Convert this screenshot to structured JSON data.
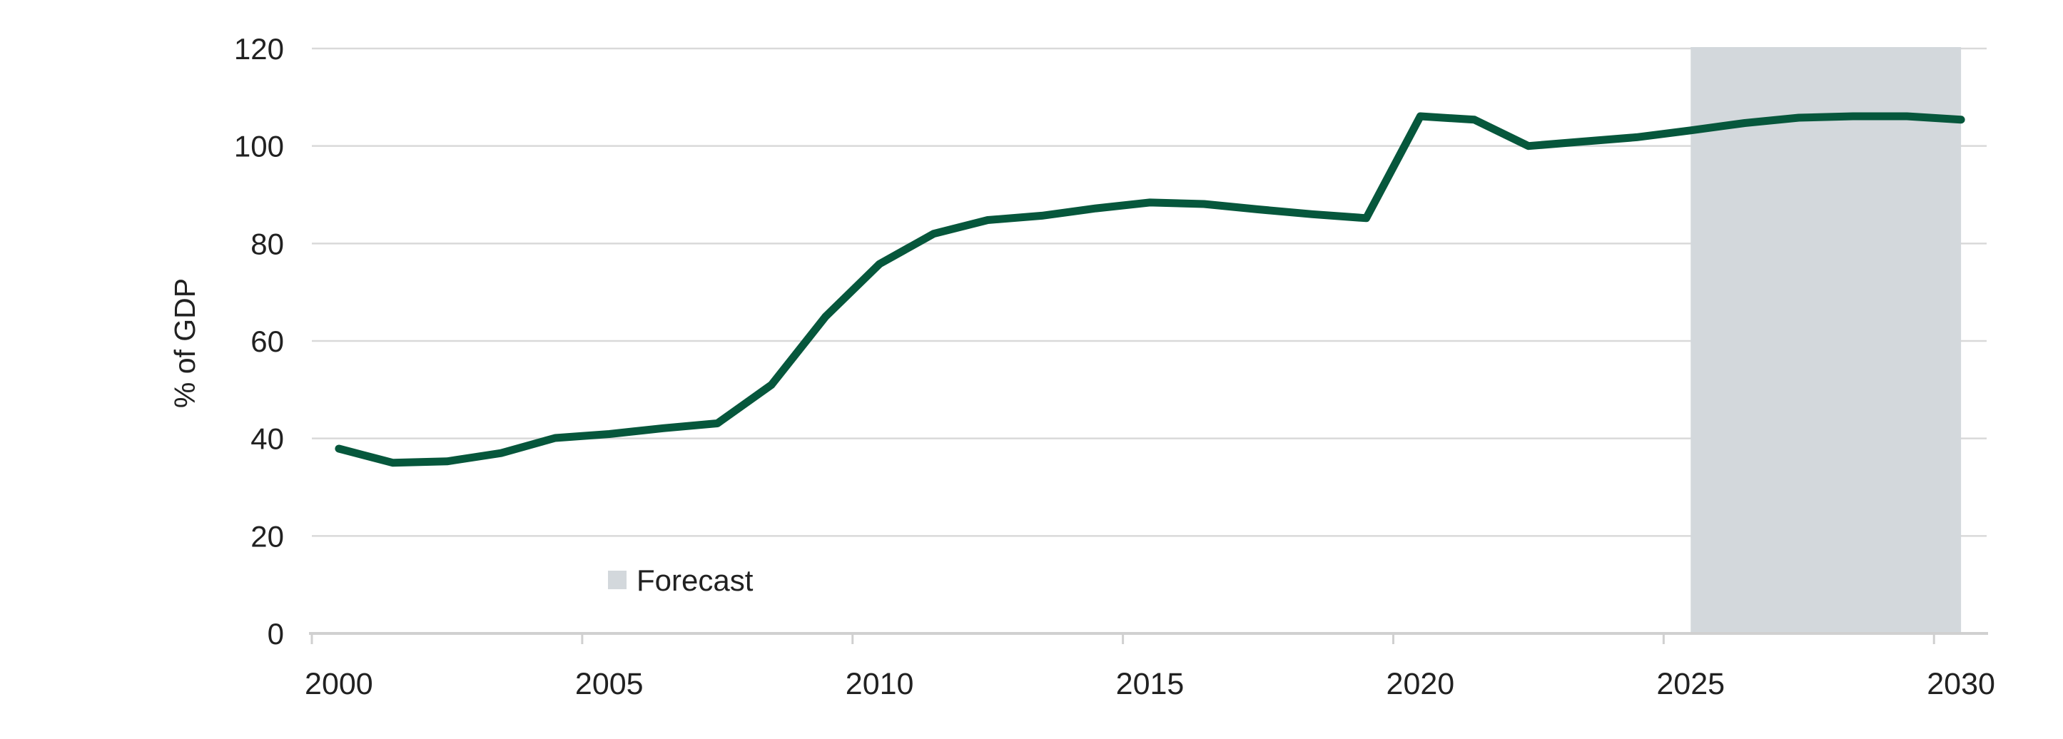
{
  "page": {
    "background": "#ffffff"
  },
  "chart_data": {
    "type": "line",
    "title": "",
    "xlabel": "",
    "ylabel": "% of GDP",
    "x": [
      2000,
      2001,
      2002,
      2003,
      2004,
      2005,
      2006,
      2007,
      2008,
      2009,
      2010,
      2011,
      2012,
      2013,
      2014,
      2015,
      2016,
      2017,
      2018,
      2019,
      2020,
      2021,
      2022,
      2023,
      2024,
      2025,
      2026,
      2027,
      2028,
      2029,
      2030
    ],
    "series": [
      {
        "values": [
          37.9,
          35.0,
          35.3,
          37.0,
          40.1,
          40.9,
          42.1,
          43.1,
          51.0,
          65.0,
          75.8,
          82.0,
          84.8,
          85.7,
          87.2,
          88.4,
          88.1,
          87.0,
          86.0,
          85.2,
          106.1,
          105.4,
          100.0,
          100.9,
          101.8,
          103.2,
          104.7,
          105.8,
          106.1,
          106.1,
          105.4
        ],
        "color": "#06573C"
      }
    ],
    "ylim": [
      0,
      120
    ],
    "yticks": [
      0,
      20,
      40,
      60,
      80,
      100,
      120
    ],
    "xticks": [
      2000,
      2005,
      2010,
      2015,
      2020,
      2025,
      2030
    ],
    "grid": "horizontal",
    "legend": {
      "position": "inside-bottom-left",
      "items": [
        {
          "label": "Forecast",
          "swatch_color": "#d3d8dc"
        }
      ]
    },
    "forecast_band": {
      "from_year": 2025,
      "to_year": 2030,
      "color": "#d3d8dc"
    }
  },
  "colors": {
    "line": "#06573C",
    "band": "#d3d8dc",
    "gridline": "#d9d9d9",
    "axis_line": "#d0d0d0",
    "text": "#212121"
  }
}
